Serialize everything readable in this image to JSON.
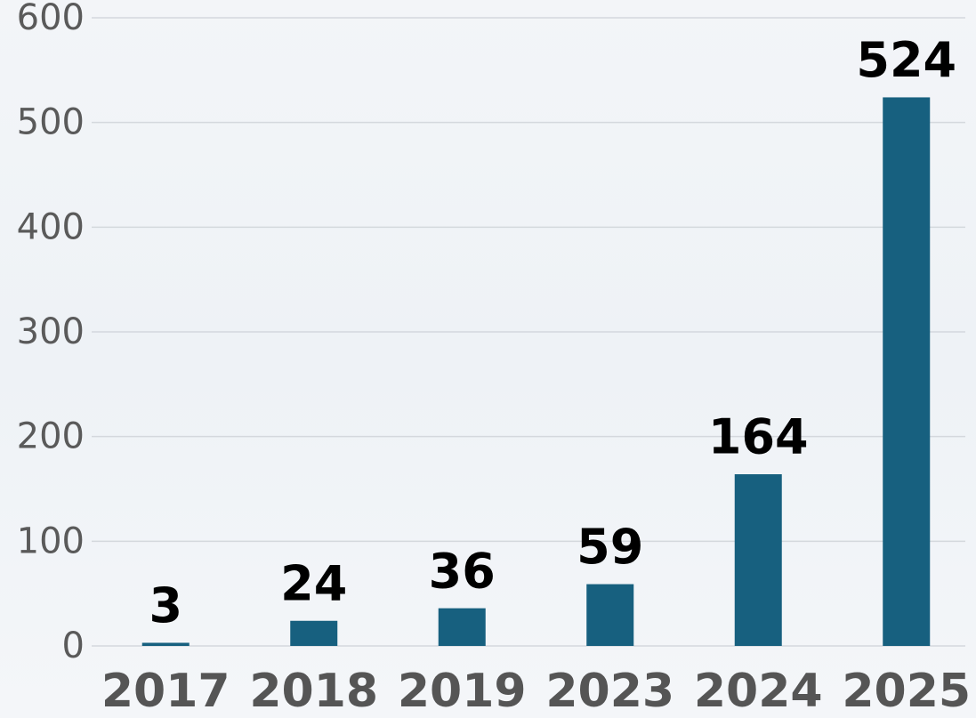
{
  "chart_data": {
    "type": "bar",
    "categories": [
      "2017",
      "2018",
      "2019",
      "2023",
      "2024",
      "2025"
    ],
    "values": [
      3,
      24,
      36,
      59,
      164,
      524
    ],
    "color": "#17607f",
    "ylim": [
      0,
      600
    ],
    "yticks": [
      0,
      100,
      200,
      300,
      400,
      500,
      600
    ],
    "grid": true
  }
}
